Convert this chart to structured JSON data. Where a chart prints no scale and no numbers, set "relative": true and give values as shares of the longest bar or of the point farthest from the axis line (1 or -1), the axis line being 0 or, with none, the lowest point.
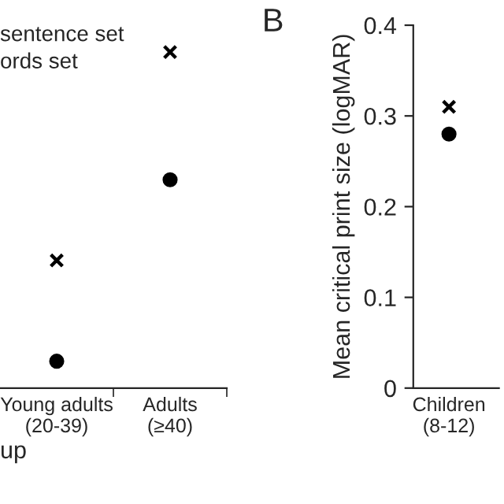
{
  "chart_data": [
    {
      "type": "scatter",
      "relative": true,
      "categories": [
        "Young adults\n(20-39)",
        "Adults\n(≥40)"
      ],
      "xlabel": "up",
      "annotations": [
        "sentence set",
        "ords set"
      ],
      "series": [
        {
          "color": "#000000",
          "marker": "cross",
          "values": [
            0.38,
            1
          ]
        },
        {
          "color": "#000000",
          "marker": "circle",
          "values": [
            0.08,
            0.62
          ]
        }
      ]
    },
    {
      "type": "scatter",
      "title": "B",
      "ylabel": "Mean critical print size (logMAR)",
      "categories": [
        "Children\n(8-12)"
      ],
      "ylim": [
        0,
        0.4
      ],
      "yticks": [
        0,
        0.1,
        0.2,
        0.3,
        0.4
      ],
      "series": [
        {
          "color": "#000000",
          "marker": "cross",
          "values": [
            0.31
          ]
        },
        {
          "color": "#000000",
          "marker": "circle",
          "values": [
            0.28
          ]
        }
      ]
    }
  ]
}
